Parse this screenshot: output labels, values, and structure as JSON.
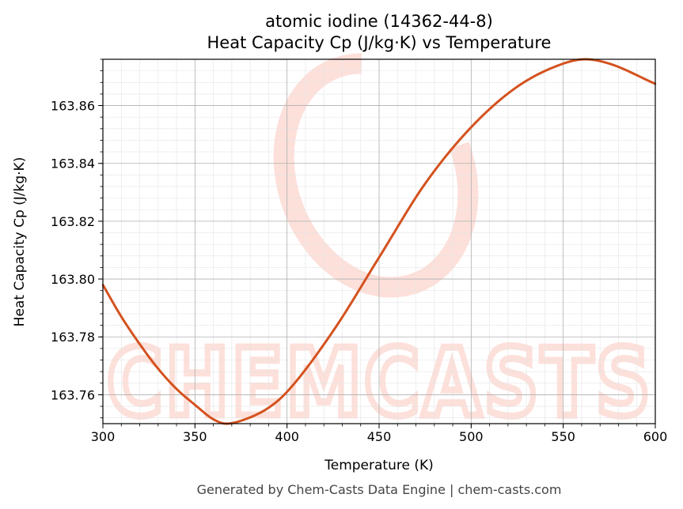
{
  "chart_data": {
    "type": "line",
    "title": "atomic iodine (14362-44-8)",
    "subtitle": "Heat Capacity Cp (J/kg·K) vs Temperature",
    "xlabel": "Temperature (K)",
    "ylabel": "Heat Capacity Cp (J/kg·K)",
    "xlim": [
      300,
      600
    ],
    "ylim": [
      163.75,
      163.876
    ],
    "xticks": [
      300,
      350,
      400,
      450,
      500,
      550,
      600
    ],
    "yticks": [
      163.76,
      163.78,
      163.8,
      163.82,
      163.84,
      163.86
    ],
    "grid": true,
    "series": [
      {
        "color": "#d4521f",
        "x": [
          300,
          310,
          320,
          330,
          340,
          350,
          360,
          367,
          375,
          390,
          400,
          425,
          450,
          475,
          500,
          525,
          550,
          562,
          575,
          600
        ],
        "y": [
          163.798,
          163.787,
          163.7775,
          163.769,
          163.762,
          163.7565,
          163.7515,
          163.75,
          163.751,
          163.7555,
          163.761,
          163.782,
          163.8075,
          163.833,
          163.8525,
          163.8665,
          163.8745,
          163.876,
          163.8745,
          163.8675
        ]
      }
    ]
  },
  "watermark": {
    "text": "CHEMCASTS",
    "color": "#fde0da"
  },
  "footer": "Generated by Chem-Casts Data Engine | chem-casts.com"
}
